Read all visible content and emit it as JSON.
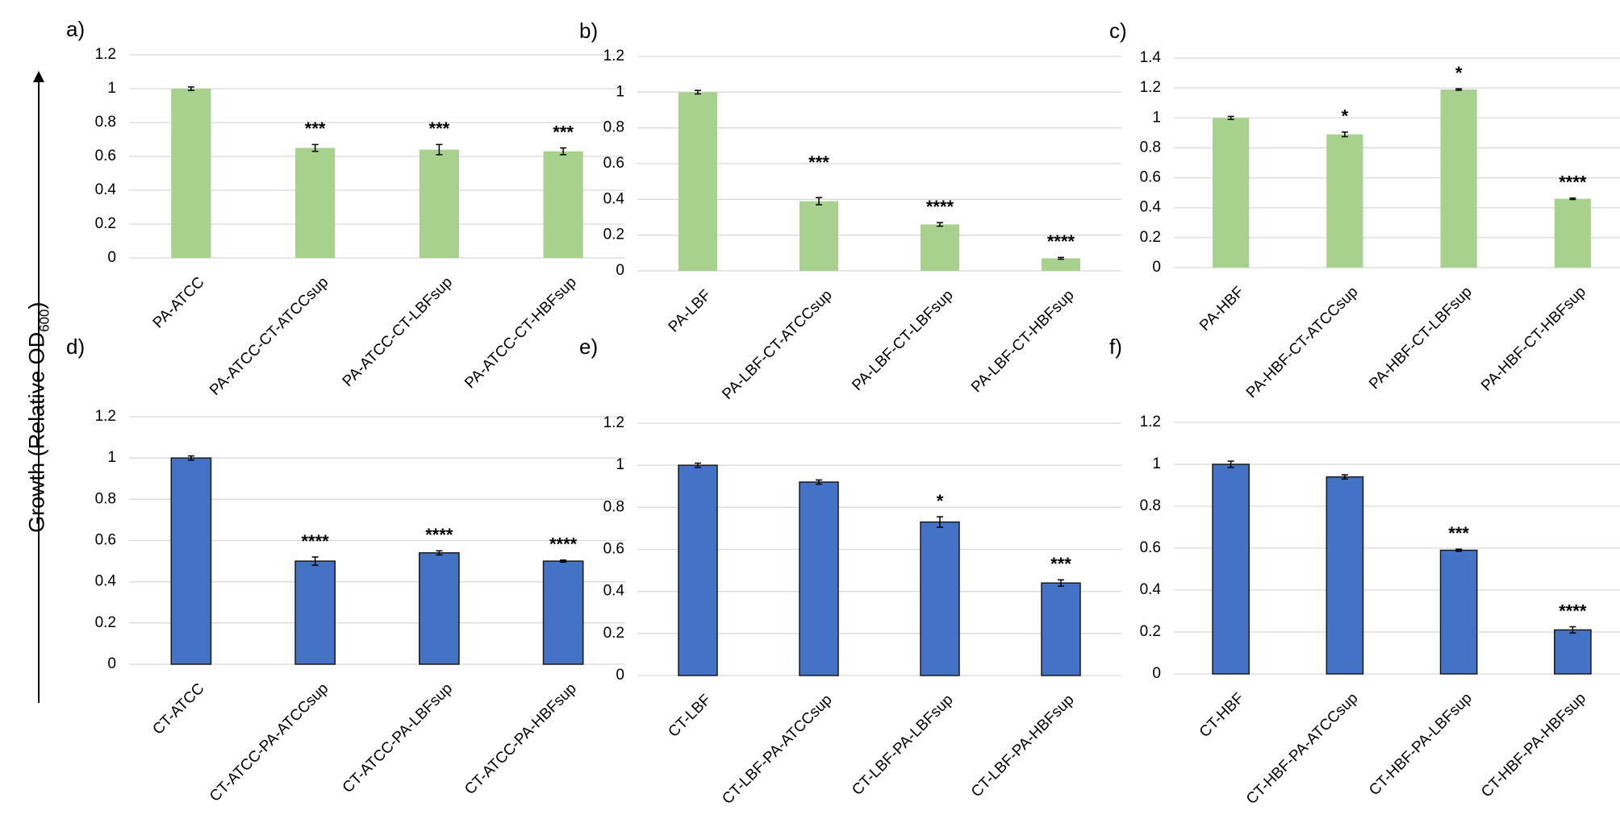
{
  "y_axis_label": {
    "text": "Growth (Relative OD",
    "subscript": "600",
    "close": ")"
  },
  "chart_data": [
    {
      "panel": "a)",
      "type": "bar",
      "color": "#a9d18e",
      "ylim": [
        0,
        1.2
      ],
      "yticks": [
        "0",
        "0.2",
        "0.4",
        "0.6",
        "0.8",
        "1",
        "1.2"
      ],
      "categories": [
        "PA-ATCC",
        "PA-ATCC-CT-ATCCsup",
        "PA-ATCC-CT-LBFsup",
        "PA-ATCC-CT-HBFsup"
      ],
      "values": [
        1.0,
        0.65,
        0.64,
        0.63
      ],
      "errors": [
        0.01,
        0.02,
        0.03,
        0.02
      ],
      "significance": [
        "",
        "***",
        "***",
        "***"
      ]
    },
    {
      "panel": "b)",
      "type": "bar",
      "color": "#a9d18e",
      "ylim": [
        0,
        1.2
      ],
      "yticks": [
        "0",
        "0.2",
        "0.4",
        "0.6",
        "0.8",
        "1",
        "1.2"
      ],
      "categories": [
        "PA-LBF",
        "PA-LBF-CT-ATCCsup",
        "PA-LBF-CT-LBFsup",
        "PA-LBF-CT-HBFsup"
      ],
      "values": [
        1.0,
        0.39,
        0.26,
        0.07
      ],
      "errors": [
        0.01,
        0.02,
        0.01,
        0.005
      ],
      "significance": [
        "",
        "***",
        "****",
        "****"
      ]
    },
    {
      "panel": "c)",
      "type": "bar",
      "color": "#a9d18e",
      "ylim": [
        0,
        1.4
      ],
      "yticks": [
        "0",
        "0.2",
        "0.4",
        "0.6",
        "0.8",
        "1",
        "1.2",
        "1.4"
      ],
      "categories": [
        "PA-HBF",
        "PA-HBF-CT-ATCCsup",
        "PA-HBF-CT-LBFsup",
        "PA-HBF-CT-HBFsup"
      ],
      "values": [
        1.0,
        0.89,
        1.19,
        0.46
      ],
      "errors": [
        0.01,
        0.015,
        0.005,
        0.005
      ],
      "significance": [
        "",
        "*",
        "*",
        "****"
      ]
    },
    {
      "panel": "d)",
      "type": "bar",
      "color": "#4472c4",
      "ylim": [
        0,
        1.2
      ],
      "yticks": [
        "0",
        "0.2",
        "0.4",
        "0.6",
        "0.8",
        "1",
        "1.2"
      ],
      "categories": [
        "CT-ATCC",
        "CT-ATCC-PA-ATCCsup",
        "CT-ATCC-PA-LBFsup",
        "CT-ATCC-PA-HBFsup"
      ],
      "values": [
        1.0,
        0.5,
        0.54,
        0.5
      ],
      "errors": [
        0.01,
        0.02,
        0.01,
        0.005
      ],
      "significance": [
        "",
        "****",
        "****",
        "****"
      ]
    },
    {
      "panel": "e)",
      "type": "bar",
      "color": "#4472c4",
      "ylim": [
        0,
        1.2
      ],
      "yticks": [
        "0",
        "0.2",
        "0.4",
        "0.6",
        "0.8",
        "1",
        "1.2"
      ],
      "categories": [
        "CT-LBF",
        "CT-LBF-PA-ATCCsup",
        "CT-LBF-PA-LBFsup",
        "CT-LBF-PA-HBFsup"
      ],
      "values": [
        1.0,
        0.92,
        0.73,
        0.44
      ],
      "errors": [
        0.01,
        0.01,
        0.025,
        0.015
      ],
      "significance": [
        "",
        "",
        "*",
        "***"
      ]
    },
    {
      "panel": "f)",
      "type": "bar",
      "color": "#4472c4",
      "ylim": [
        0,
        1.2
      ],
      "yticks": [
        "0",
        "0.2",
        "0.4",
        "0.6",
        "0.8",
        "1",
        "1.2"
      ],
      "categories": [
        "CT-HBF",
        "CT-HBF-PA-ATCCsup",
        "CT-HBF-PA-LBFsup",
        "CT-HBF-PA-HBFsup"
      ],
      "values": [
        1.0,
        0.94,
        0.59,
        0.21
      ],
      "errors": [
        0.015,
        0.01,
        0.005,
        0.015
      ],
      "significance": [
        "",
        "",
        "***",
        "****"
      ]
    }
  ]
}
